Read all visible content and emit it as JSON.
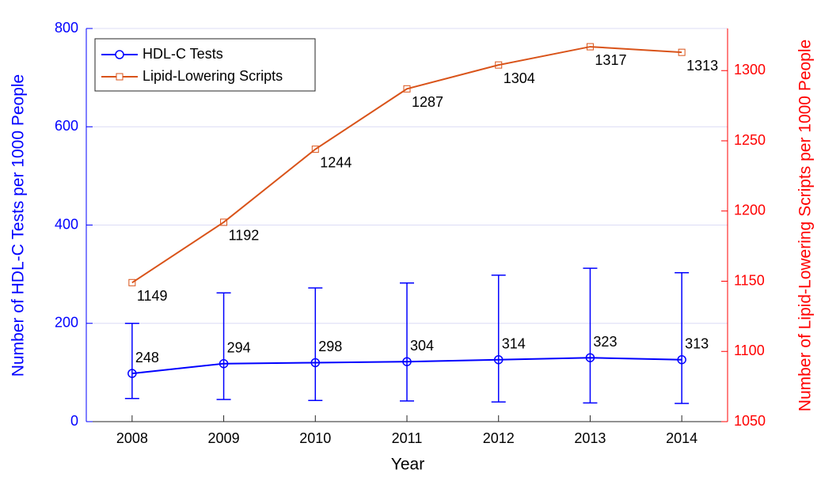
{
  "chart_data": {
    "type": "line",
    "x": [
      2008,
      2009,
      2010,
      2011,
      2012,
      2013,
      2014
    ],
    "xlim": [
      2007.5,
      2014.5
    ],
    "xticks": [
      2008,
      2009,
      2010,
      2011,
      2012,
      2013,
      2014
    ],
    "xlabel": "Year",
    "ylabel": "Number of HDL-C Tests per 1000 People",
    "y2label": "Number of Lipid-Lowering Scripts per 1000 People",
    "ylim": [
      0,
      800
    ],
    "yticks": [
      0,
      200,
      400,
      600,
      800
    ],
    "y2lim": [
      1050,
      1330
    ],
    "y2ticks": [
      1050,
      1100,
      1150,
      1200,
      1250,
      1300
    ],
    "grid": true,
    "legend": "upper left",
    "series": [
      {
        "name": "HDL-C Tests",
        "color": "#0000ff",
        "marker": "circle",
        "values": [
          98,
          118,
          120,
          122,
          126,
          130,
          126
        ],
        "lower": [
          47,
          45,
          43,
          42,
          40,
          38,
          37
        ],
        "upper": [
          200,
          262,
          272,
          282,
          298,
          312,
          303
        ],
        "labels": [
          248,
          294,
          298,
          304,
          314,
          323,
          313
        ]
      },
      {
        "name": "Lipid-Lowering Scripts",
        "color": "#d95319",
        "marker": "square",
        "axis": "y2",
        "values": [
          1149,
          1192,
          1244,
          1287,
          1304,
          1317,
          1313
        ]
      }
    ]
  }
}
